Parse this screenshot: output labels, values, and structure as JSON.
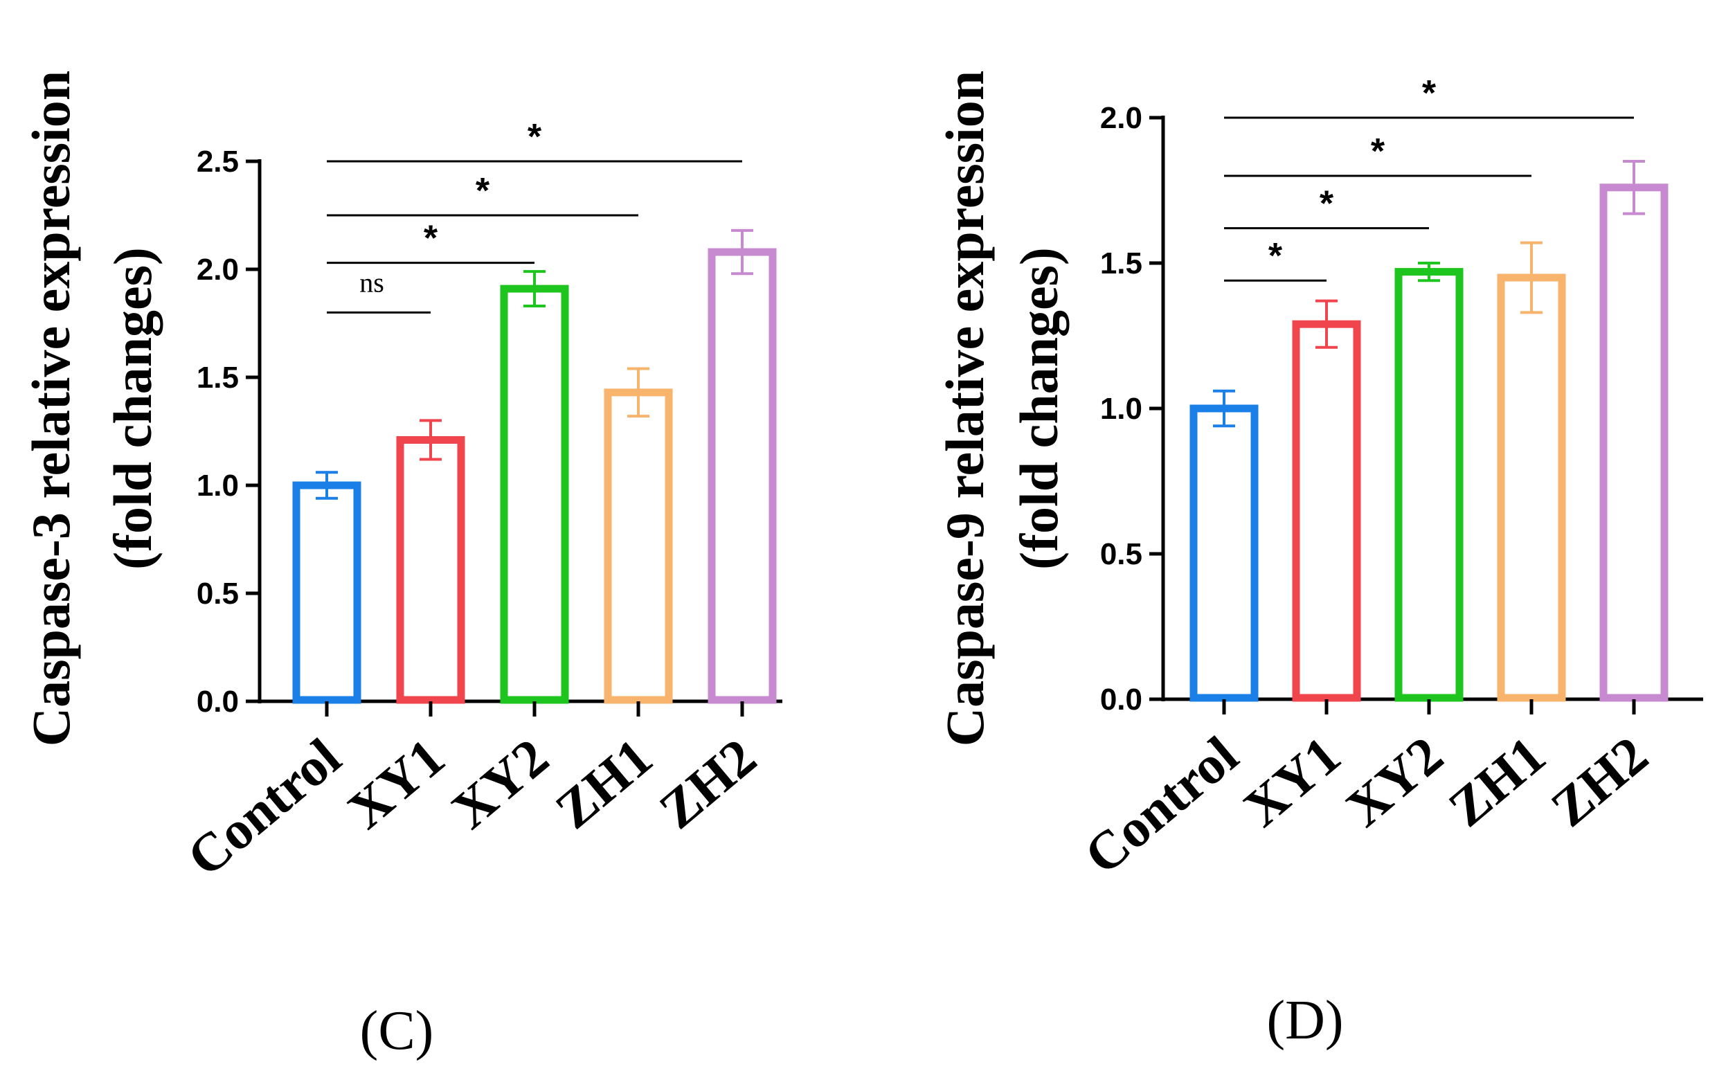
{
  "colors": {
    "Control": "#1a7fe6",
    "XY1": "#f0454c",
    "XY2": "#1ec51e",
    "ZH1": "#f8b36c",
    "ZH2": "#c78ad0",
    "axis": "#000000"
  },
  "chart_data": [
    {
      "id": "C",
      "type": "bar",
      "panel_label": "(C)",
      "ylabel_line1": "Caspase-3 relative expression",
      "ylabel_line2": "(fold changes)",
      "categories": [
        "Control",
        "XY1",
        "XY2",
        "ZH1",
        "ZH2"
      ],
      "values": [
        1.0,
        1.21,
        1.91,
        1.43,
        2.08
      ],
      "errors": [
        0.06,
        0.09,
        0.08,
        0.11,
        0.1
      ],
      "ylim": [
        0,
        2.5
      ],
      "yticks": [
        "0.0",
        "0.5",
        "1.0",
        "1.5",
        "2.0",
        "2.5"
      ],
      "comparisons": [
        {
          "from": 0,
          "to": 1,
          "label": "ns",
          "y": 1.8
        },
        {
          "from": 0,
          "to": 2,
          "label": "*",
          "y": 2.03
        },
        {
          "from": 0,
          "to": 3,
          "label": "*",
          "y": 2.25
        },
        {
          "from": 0,
          "to": 4,
          "label": "*",
          "y": 2.5
        }
      ]
    },
    {
      "id": "D",
      "type": "bar",
      "panel_label": "(D)",
      "ylabel_line1": "Caspase-9 relative expression",
      "ylabel_line2": "(fold changes)",
      "categories": [
        "Control",
        "XY1",
        "XY2",
        "ZH1",
        "ZH2"
      ],
      "values": [
        1.0,
        1.29,
        1.47,
        1.45,
        1.76
      ],
      "errors": [
        0.06,
        0.08,
        0.03,
        0.12,
        0.09
      ],
      "ylim": [
        0,
        2.0
      ],
      "yticks": [
        "0.0",
        "0.5",
        "1.0",
        "1.5",
        "2.0"
      ],
      "comparisons": [
        {
          "from": 0,
          "to": 1,
          "label": "*",
          "y": 1.44
        },
        {
          "from": 0,
          "to": 2,
          "label": "*",
          "y": 1.62
        },
        {
          "from": 0,
          "to": 3,
          "label": "*",
          "y": 1.8
        },
        {
          "from": 0,
          "to": 4,
          "label": "*",
          "y": 2.0
        }
      ]
    }
  ]
}
